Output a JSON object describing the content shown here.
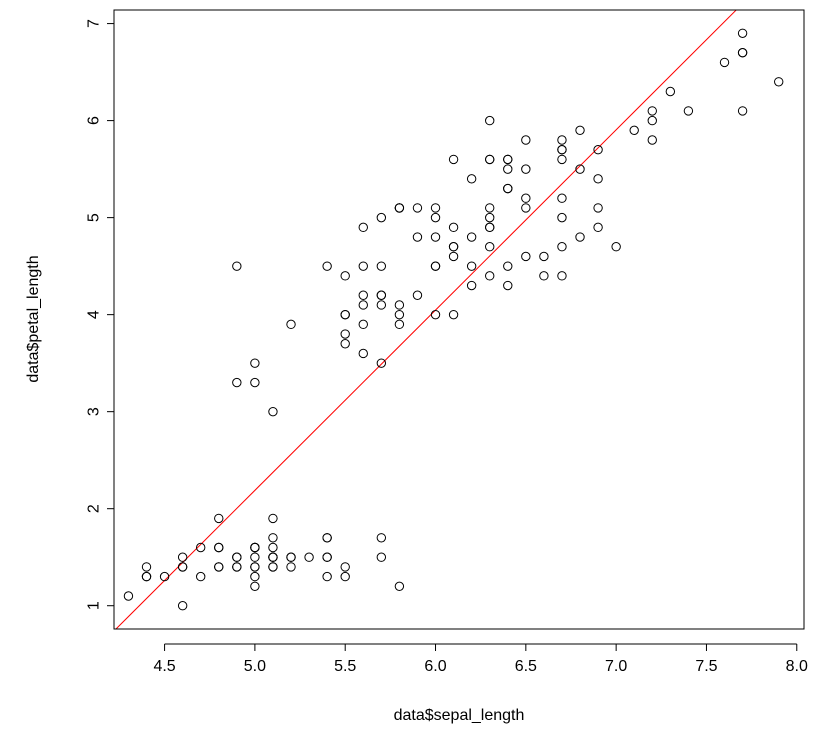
{
  "chart_data": {
    "type": "scatter",
    "title": "",
    "xlabel": "data$sepal_length",
    "ylabel": "data$petal_length",
    "xlim": [
      4.22,
      8.04
    ],
    "ylim": [
      0.76,
      7.14
    ],
    "x_ticks": [
      "4.5",
      "5.0",
      "5.5",
      "6.0",
      "6.5",
      "7.0",
      "7.5",
      "8.0"
    ],
    "y_ticks": [
      "1",
      "2",
      "3",
      "4",
      "5",
      "6",
      "7"
    ],
    "grid": false,
    "point_style": "open-circle",
    "colors": {
      "points": "#000000",
      "regression_line": "#ff0000",
      "frame": "#000000",
      "background": "#ffffff"
    },
    "series": [
      {
        "points": [
          [
            5.1,
            1.4
          ],
          [
            4.9,
            1.4
          ],
          [
            4.7,
            1.3
          ],
          [
            4.6,
            1.5
          ],
          [
            5.0,
            1.4
          ],
          [
            5.4,
            1.7
          ],
          [
            4.6,
            1.4
          ],
          [
            5.0,
            1.5
          ],
          [
            4.4,
            1.4
          ],
          [
            4.9,
            1.5
          ],
          [
            5.4,
            1.5
          ],
          [
            4.8,
            1.6
          ],
          [
            4.8,
            1.4
          ],
          [
            4.3,
            1.1
          ],
          [
            5.8,
            1.2
          ],
          [
            5.7,
            1.5
          ],
          [
            5.4,
            1.3
          ],
          [
            5.1,
            1.4
          ],
          [
            5.7,
            1.7
          ],
          [
            5.1,
            1.5
          ],
          [
            5.4,
            1.7
          ],
          [
            5.1,
            1.5
          ],
          [
            4.6,
            1.0
          ],
          [
            5.1,
            1.7
          ],
          [
            4.8,
            1.9
          ],
          [
            5.0,
            1.6
          ],
          [
            5.0,
            1.6
          ],
          [
            5.2,
            1.5
          ],
          [
            5.2,
            1.4
          ],
          [
            4.7,
            1.6
          ],
          [
            4.8,
            1.6
          ],
          [
            5.4,
            1.5
          ],
          [
            5.2,
            1.5
          ],
          [
            5.5,
            1.4
          ],
          [
            4.9,
            1.5
          ],
          [
            5.0,
            1.2
          ],
          [
            5.5,
            1.3
          ],
          [
            4.9,
            1.4
          ],
          [
            4.4,
            1.3
          ],
          [
            5.1,
            1.5
          ],
          [
            5.0,
            1.3
          ],
          [
            4.5,
            1.3
          ],
          [
            4.4,
            1.3
          ],
          [
            5.0,
            1.6
          ],
          [
            5.1,
            1.9
          ],
          [
            4.8,
            1.4
          ],
          [
            5.1,
            1.6
          ],
          [
            4.6,
            1.4
          ],
          [
            5.3,
            1.5
          ],
          [
            5.0,
            1.4
          ],
          [
            7.0,
            4.7
          ],
          [
            6.4,
            4.5
          ],
          [
            6.9,
            4.9
          ],
          [
            5.5,
            4.0
          ],
          [
            6.5,
            4.6
          ],
          [
            5.7,
            4.5
          ],
          [
            6.3,
            4.7
          ],
          [
            4.9,
            3.3
          ],
          [
            6.6,
            4.6
          ],
          [
            5.2,
            3.9
          ],
          [
            5.0,
            3.5
          ],
          [
            5.9,
            4.2
          ],
          [
            6.0,
            4.0
          ],
          [
            6.1,
            4.7
          ],
          [
            5.6,
            3.6
          ],
          [
            6.7,
            4.4
          ],
          [
            5.6,
            4.5
          ],
          [
            5.8,
            4.1
          ],
          [
            6.2,
            4.5
          ],
          [
            5.6,
            3.9
          ],
          [
            5.9,
            4.8
          ],
          [
            6.1,
            4.0
          ],
          [
            6.3,
            4.9
          ],
          [
            6.1,
            4.7
          ],
          [
            6.4,
            4.3
          ],
          [
            6.6,
            4.4
          ],
          [
            6.8,
            4.8
          ],
          [
            6.7,
            5.0
          ],
          [
            6.0,
            4.5
          ],
          [
            5.7,
            3.5
          ],
          [
            5.5,
            3.8
          ],
          [
            5.5,
            3.7
          ],
          [
            5.8,
            3.9
          ],
          [
            6.0,
            5.1
          ],
          [
            5.4,
            4.5
          ],
          [
            6.0,
            4.5
          ],
          [
            6.7,
            4.7
          ],
          [
            6.3,
            4.4
          ],
          [
            5.6,
            4.1
          ],
          [
            5.5,
            4.0
          ],
          [
            5.5,
            4.4
          ],
          [
            6.1,
            4.6
          ],
          [
            5.8,
            4.0
          ],
          [
            5.0,
            3.3
          ],
          [
            5.6,
            4.2
          ],
          [
            5.7,
            4.2
          ],
          [
            5.7,
            4.2
          ],
          [
            6.2,
            4.3
          ],
          [
            5.1,
            3.0
          ],
          [
            5.7,
            4.1
          ],
          [
            6.3,
            6.0
          ],
          [
            5.8,
            5.1
          ],
          [
            7.1,
            5.9
          ],
          [
            6.3,
            5.6
          ],
          [
            6.5,
            5.8
          ],
          [
            7.6,
            6.6
          ],
          [
            4.9,
            4.5
          ],
          [
            7.3,
            6.3
          ],
          [
            6.7,
            5.8
          ],
          [
            7.2,
            6.1
          ],
          [
            6.5,
            5.1
          ],
          [
            6.4,
            5.3
          ],
          [
            6.8,
            5.5
          ],
          [
            5.7,
            5.0
          ],
          [
            5.8,
            5.1
          ],
          [
            6.4,
            5.3
          ],
          [
            6.5,
            5.5
          ],
          [
            7.7,
            6.7
          ],
          [
            7.7,
            6.9
          ],
          [
            6.0,
            5.0
          ],
          [
            6.9,
            5.7
          ],
          [
            5.6,
            4.9
          ],
          [
            7.7,
            6.7
          ],
          [
            6.3,
            4.9
          ],
          [
            6.7,
            5.7
          ],
          [
            7.2,
            6.0
          ],
          [
            6.2,
            4.8
          ],
          [
            6.1,
            4.9
          ],
          [
            6.4,
            5.6
          ],
          [
            7.2,
            5.8
          ],
          [
            7.4,
            6.1
          ],
          [
            7.9,
            6.4
          ],
          [
            6.4,
            5.6
          ],
          [
            6.3,
            5.1
          ],
          [
            6.1,
            5.6
          ],
          [
            7.7,
            6.1
          ],
          [
            6.3,
            5.6
          ],
          [
            6.4,
            5.5
          ],
          [
            6.0,
            4.8
          ],
          [
            6.9,
            5.4
          ],
          [
            6.7,
            5.6
          ],
          [
            6.9,
            5.1
          ],
          [
            5.8,
            5.1
          ],
          [
            6.8,
            5.9
          ],
          [
            6.7,
            5.7
          ],
          [
            6.7,
            5.2
          ],
          [
            6.3,
            5.0
          ],
          [
            6.5,
            5.2
          ],
          [
            6.2,
            5.4
          ],
          [
            5.9,
            5.1
          ]
        ]
      }
    ],
    "regression": {
      "intercept": -7.101,
      "slope": 1.858
    }
  }
}
